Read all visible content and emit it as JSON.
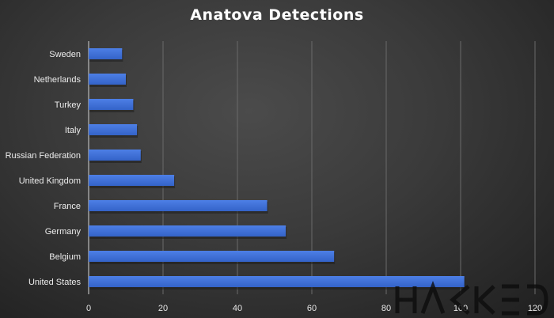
{
  "chart_data": {
    "type": "bar",
    "orientation": "horizontal",
    "title": "Anatova Detections",
    "categories": [
      "Sweden",
      "Netherlands",
      "Turkey",
      "Italy",
      "Russian Federation",
      "United Kingdom",
      "France",
      "Germany",
      "Belgium",
      "United States"
    ],
    "values": [
      9,
      10,
      12,
      13,
      14,
      23,
      48,
      53,
      66,
      101
    ],
    "xlim": [
      0,
      120
    ],
    "xticks": [
      0,
      20,
      40,
      60,
      80,
      100,
      120
    ],
    "xlabel": "",
    "ylabel": "",
    "grid": "vertical",
    "bar_color": "#3f6fd6"
  },
  "watermark": "HACKED"
}
